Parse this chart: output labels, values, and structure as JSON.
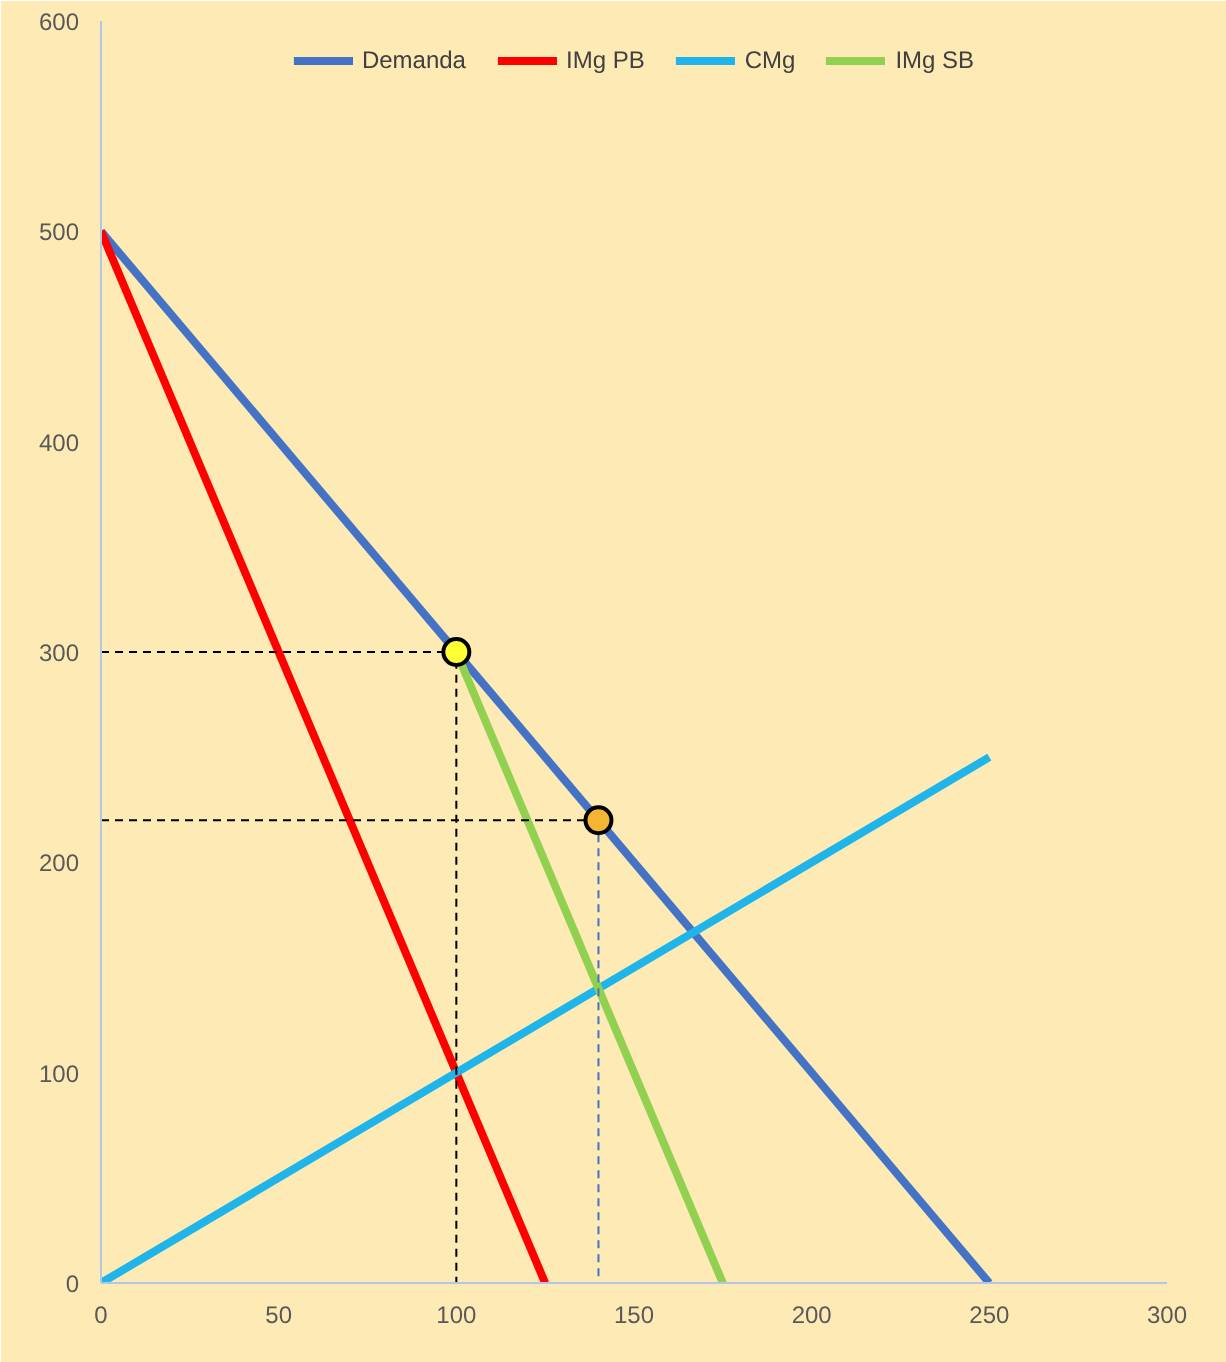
{
  "chart_data": {
    "type": "line",
    "xlim": [
      0,
      300
    ],
    "ylim": [
      0,
      600
    ],
    "xticks": [
      0,
      50,
      100,
      150,
      200,
      250,
      300
    ],
    "yticks": [
      0,
      100,
      200,
      300,
      400,
      500,
      600
    ],
    "grid": false,
    "legend": "top",
    "marker": "none",
    "line_style": "solid",
    "series": [
      {
        "name": "Demanda",
        "color": "#4472c4",
        "x": [
          0,
          250
        ],
        "values": [
          500,
          0
        ]
      },
      {
        "name": "IMg PB",
        "color": "#ff0000",
        "x": [
          0,
          125
        ],
        "values": [
          500,
          0
        ]
      },
      {
        "name": "CMg",
        "color": "#1fb4ea",
        "x": [
          0,
          250
        ],
        "values": [
          0,
          250
        ]
      },
      {
        "name": "IMg SB",
        "color": "#92d050",
        "x": [
          100,
          175
        ],
        "values": [
          300,
          0
        ]
      },
      {
        "type": "line",
        "color": "#000000",
        "line_style": "dashed",
        "x": [
          0,
          100,
          100
        ],
        "values": [
          300,
          300,
          0
        ]
      },
      {
        "type": "line",
        "color": "#000000",
        "line_style": "dashed",
        "x": [
          0,
          140
        ],
        "values": [
          220,
          220
        ]
      },
      {
        "type": "line",
        "color": "#4472c4",
        "line_style": "dashed",
        "x": [
          140,
          140
        ],
        "values": [
          220,
          0
        ]
      },
      {
        "type": "scatter",
        "marker": "circle",
        "color": "#ffff33",
        "x": [
          100
        ],
        "values": [
          300
        ]
      },
      {
        "type": "scatter",
        "marker": "circle",
        "color": "#f4b532",
        "x": [
          140
        ],
        "values": [
          220
        ]
      }
    ]
  }
}
